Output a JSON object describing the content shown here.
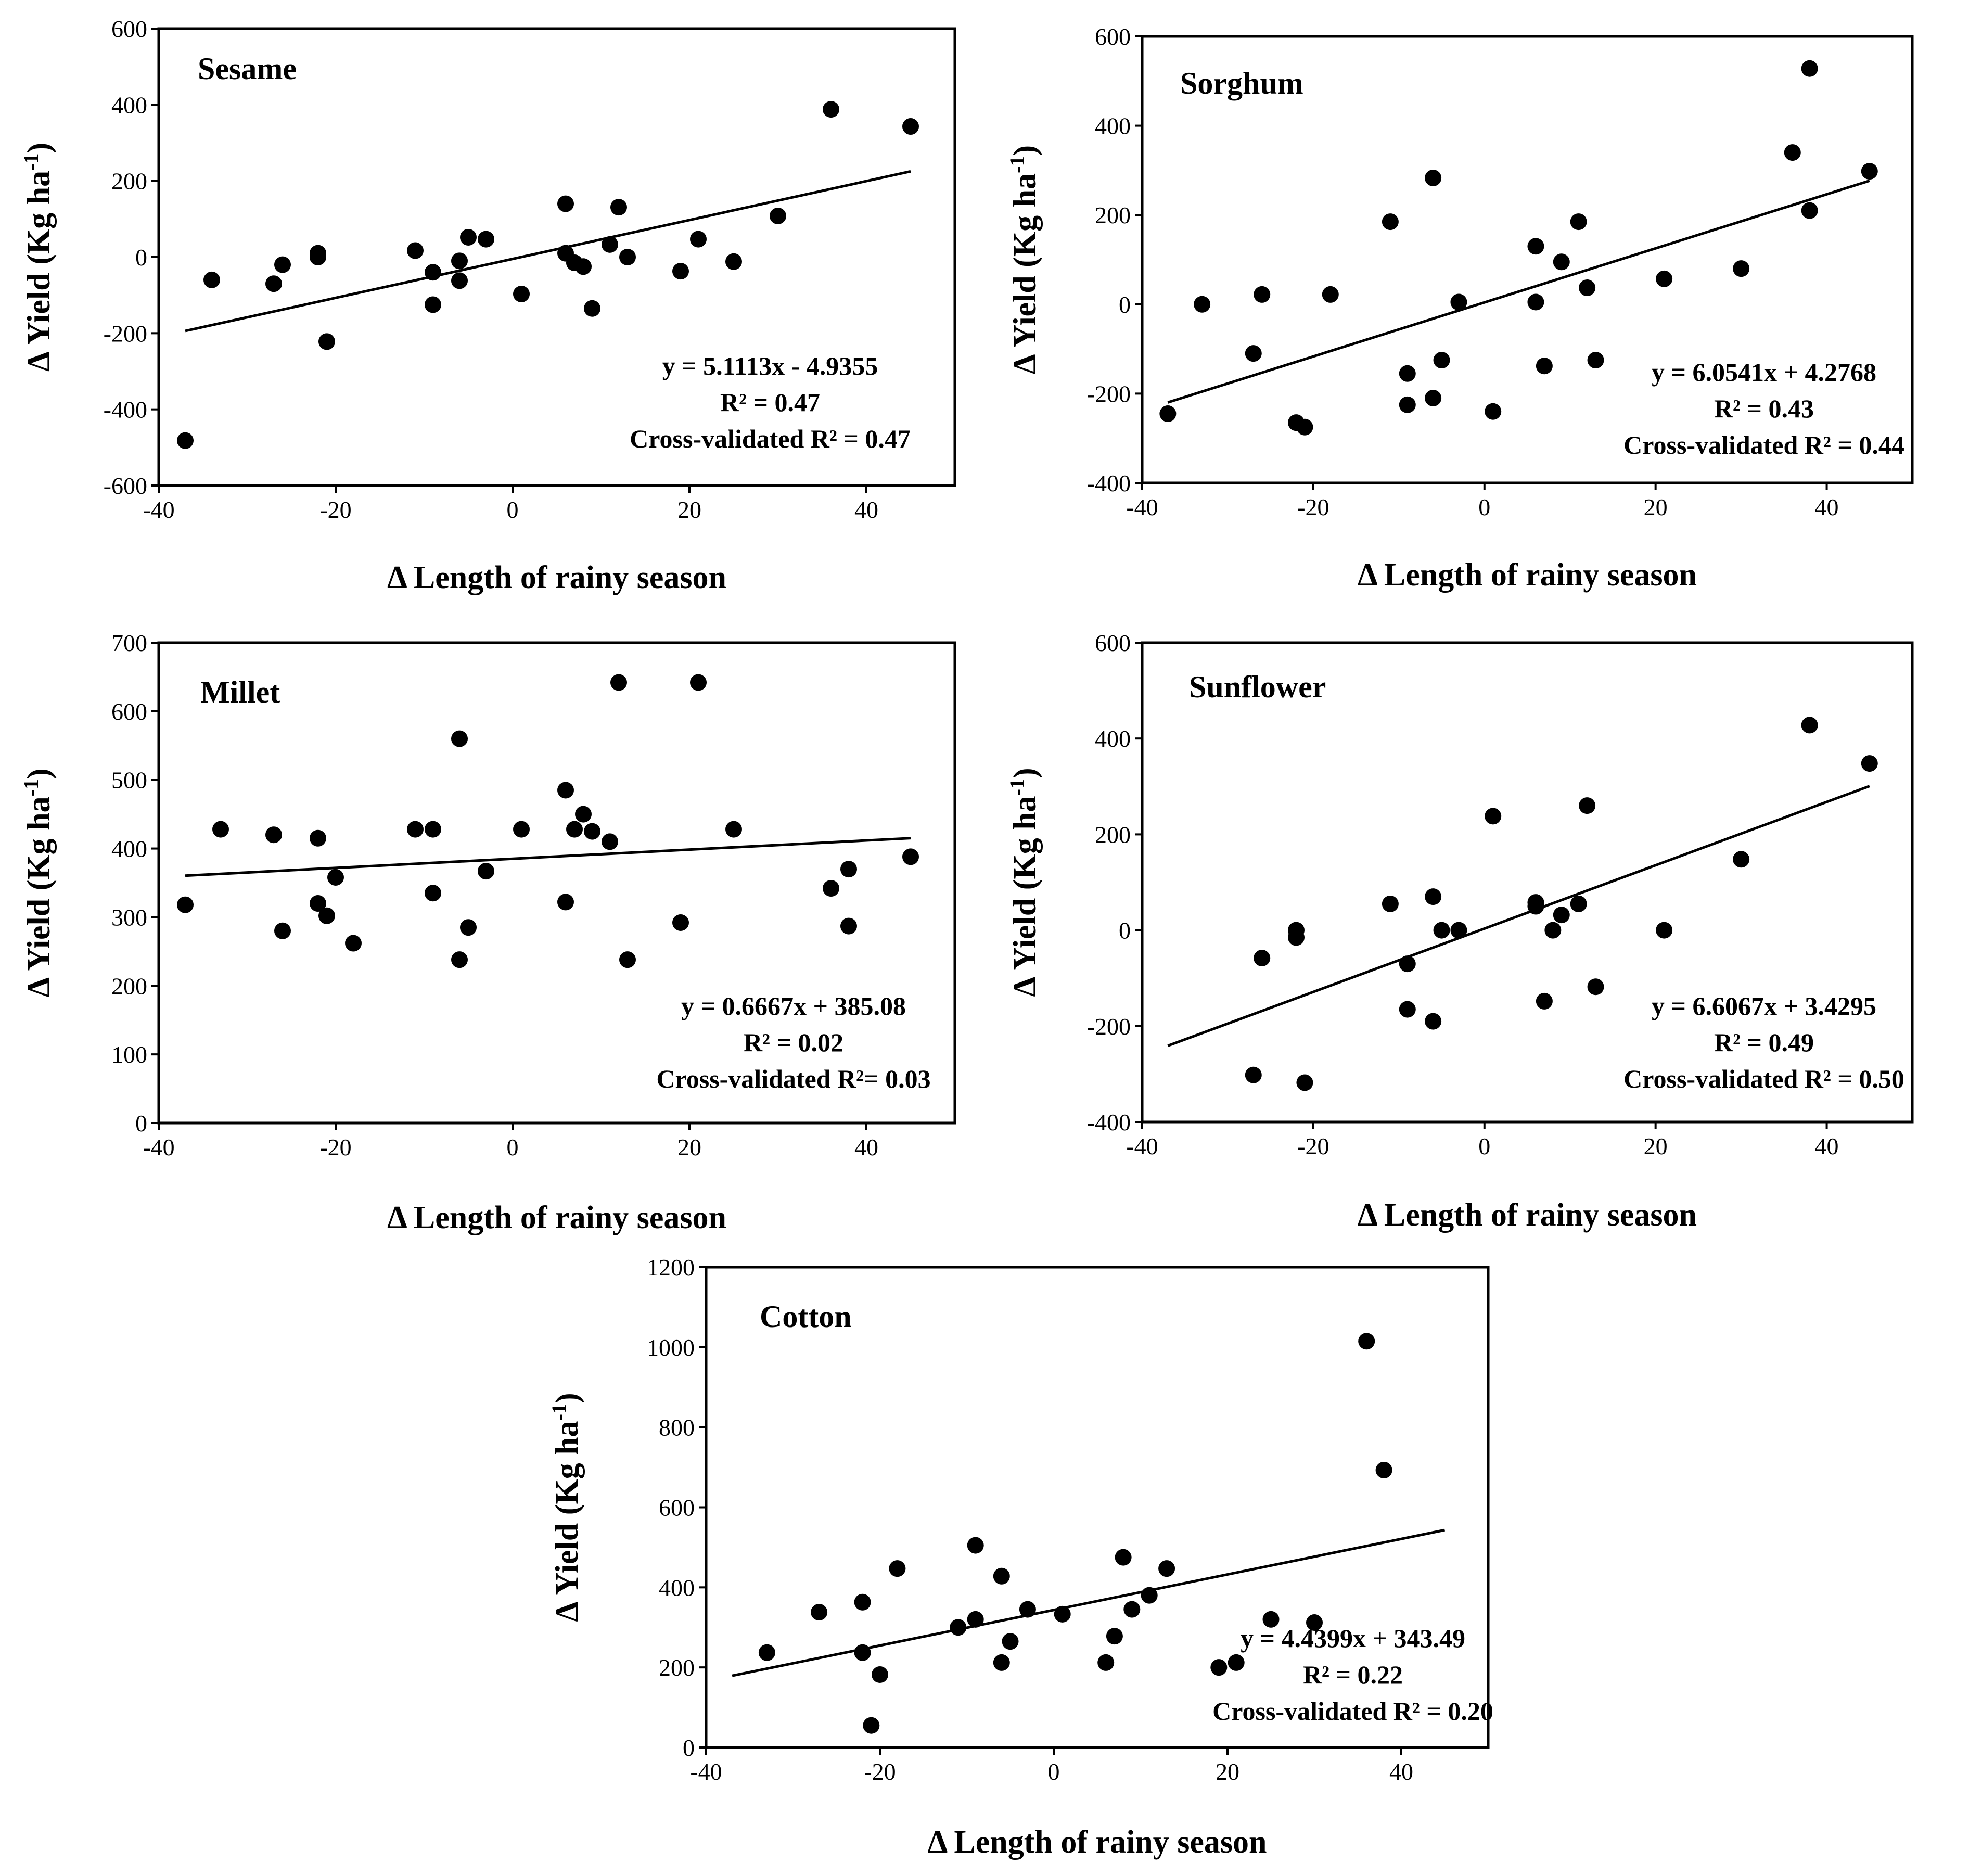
{
  "figure": {
    "xlabel_prefix": "Δ",
    "xlabel": "Length of rainy season",
    "ylabel": "Δ Yield (Kg ha",
    "ylabel_sup": "-1",
    "ylabel_end": ")"
  },
  "chart_data": [
    {
      "type": "scatter",
      "title": "Sesame",
      "xlabel": "Δ Length of rainy season",
      "ylabel": "Δ Yield (Kg ha-1)",
      "xlim": [
        -40,
        50
      ],
      "ylim": [
        -600,
        600
      ],
      "xticks": [
        -40,
        -20,
        0,
        20,
        40
      ],
      "yticks": [
        -600,
        -400,
        -200,
        0,
        200,
        400,
        600
      ],
      "points": [
        [
          -37,
          -482
        ],
        [
          -34,
          -60
        ],
        [
          -27,
          -70
        ],
        [
          -26,
          -20
        ],
        [
          -22,
          10
        ],
        [
          -22,
          0
        ],
        [
          -21,
          -222
        ],
        [
          -11,
          17
        ],
        [
          -9,
          -40
        ],
        [
          -9,
          -125
        ],
        [
          -6,
          -10
        ],
        [
          -6,
          -62
        ],
        [
          -5,
          52
        ],
        [
          -3,
          47
        ],
        [
          1,
          -97
        ],
        [
          6,
          140
        ],
        [
          6,
          10
        ],
        [
          7,
          -15
        ],
        [
          8,
          -25
        ],
        [
          9,
          -135
        ],
        [
          11,
          33
        ],
        [
          12,
          131
        ],
        [
          13,
          0
        ],
        [
          19,
          -37
        ],
        [
          21,
          47
        ],
        [
          25,
          -12
        ],
        [
          30,
          108
        ],
        [
          36,
          388
        ],
        [
          45,
          343
        ]
      ],
      "trendline": {
        "slope": 5.1113,
        "intercept": -4.9355,
        "x_range": [
          -37,
          45
        ]
      },
      "annotations": [
        "y = 5.1113x - 4.9355",
        "R² = 0.47",
        "Cross-validated R² = 0.47"
      ]
    },
    {
      "type": "scatter",
      "title": "Sorghum",
      "xlabel": "Δ Length of rainy season",
      "ylabel": "Δ Yield (Kg ha-1)",
      "xlim": [
        -40,
        50
      ],
      "ylim": [
        -400,
        600
      ],
      "xticks": [
        -40,
        -20,
        0,
        20,
        40
      ],
      "yticks": [
        -400,
        -200,
        0,
        200,
        400,
        600
      ],
      "points": [
        [
          -37,
          -245
        ],
        [
          -33,
          0
        ],
        [
          -27,
          -110
        ],
        [
          -26,
          22
        ],
        [
          -22,
          -265
        ],
        [
          -21,
          -275
        ],
        [
          -18,
          22
        ],
        [
          -11,
          185
        ],
        [
          -9,
          -155
        ],
        [
          -9,
          -225
        ],
        [
          -6,
          283
        ],
        [
          -6,
          -210
        ],
        [
          -5,
          -125
        ],
        [
          -3,
          5
        ],
        [
          1,
          -240
        ],
        [
          6,
          130
        ],
        [
          6,
          5
        ],
        [
          7,
          -138
        ],
        [
          9,
          95
        ],
        [
          11,
          185
        ],
        [
          12,
          37
        ],
        [
          13,
          -125
        ],
        [
          21,
          57
        ],
        [
          30,
          80
        ],
        [
          36,
          340
        ],
        [
          38,
          528
        ],
        [
          38,
          210
        ],
        [
          45,
          298
        ]
      ],
      "trendline": {
        "slope": 6.0541,
        "intercept": 4.2768,
        "x_range": [
          -37,
          45
        ]
      },
      "annotations": [
        "y = 6.0541x + 4.2768",
        "R² = 0.43",
        "Cross-validated R² = 0.44"
      ]
    },
    {
      "type": "scatter",
      "title": "Millet",
      "xlabel": "Δ Length of rainy season",
      "ylabel": "Δ Yield (Kg ha-1)",
      "xlim": [
        -40,
        50
      ],
      "ylim": [
        0,
        700
      ],
      "xticks": [
        -40,
        -20,
        0,
        20,
        40
      ],
      "yticks": [
        0,
        100,
        200,
        300,
        400,
        500,
        600,
        700
      ],
      "points": [
        [
          -37,
          318
        ],
        [
          -33,
          428
        ],
        [
          -27,
          420
        ],
        [
          -26,
          280
        ],
        [
          -22,
          415
        ],
        [
          -22,
          320
        ],
        [
          -21,
          302
        ],
        [
          -20,
          358
        ],
        [
          -18,
          262
        ],
        [
          -11,
          428
        ],
        [
          -9,
          428
        ],
        [
          -9,
          335
        ],
        [
          -6,
          560
        ],
        [
          -6,
          238
        ],
        [
          -5,
          285
        ],
        [
          -3,
          367
        ],
        [
          1,
          428
        ],
        [
          6,
          485
        ],
        [
          6,
          322
        ],
        [
          7,
          428
        ],
        [
          8,
          450
        ],
        [
          9,
          425
        ],
        [
          11,
          410
        ],
        [
          12,
          642
        ],
        [
          13,
          238
        ],
        [
          19,
          292
        ],
        [
          21,
          642
        ],
        [
          25,
          428
        ],
        [
          36,
          342
        ],
        [
          38,
          370
        ],
        [
          38,
          287
        ],
        [
          45,
          388
        ]
      ],
      "trendline": {
        "slope": 0.6667,
        "intercept": 385.08,
        "x_range": [
          -37,
          45
        ]
      },
      "annotations": [
        "y = 0.6667x + 385.08",
        "R² = 0.02",
        "Cross-validated R²= 0.03"
      ]
    },
    {
      "type": "scatter",
      "title": "Sunflower",
      "xlabel": "Δ Length of rainy season",
      "ylabel": "Δ Yield (Kg ha-1)",
      "xlim": [
        -40,
        50
      ],
      "ylim": [
        -400,
        600
      ],
      "xticks": [
        -40,
        -20,
        0,
        20,
        40
      ],
      "yticks": [
        -400,
        -200,
        0,
        200,
        400,
        600
      ],
      "points": [
        [
          -27,
          -302
        ],
        [
          -26,
          -58
        ],
        [
          -22,
          0
        ],
        [
          -22,
          -15
        ],
        [
          -21,
          -318
        ],
        [
          -11,
          55
        ],
        [
          -9,
          -70
        ],
        [
          -9,
          -165
        ],
        [
          -6,
          70
        ],
        [
          -6,
          -190
        ],
        [
          -5,
          0
        ],
        [
          -3,
          0
        ],
        [
          1,
          238
        ],
        [
          6,
          58
        ],
        [
          6,
          50
        ],
        [
          7,
          -148
        ],
        [
          8,
          0
        ],
        [
          9,
          32
        ],
        [
          11,
          55
        ],
        [
          12,
          260
        ],
        [
          13,
          -118
        ],
        [
          21,
          0
        ],
        [
          30,
          148
        ],
        [
          38,
          428
        ],
        [
          45,
          348
        ]
      ],
      "trendline": {
        "slope": 6.6067,
        "intercept": 3.4295,
        "x_range": [
          -37,
          45
        ]
      },
      "annotations": [
        "y = 6.6067x + 3.4295",
        "R² = 0.49",
        "Cross-validated R² = 0.50"
      ]
    },
    {
      "type": "scatter",
      "title": "Cotton",
      "xlabel": "Δ Length of rainy season",
      "ylabel": "Δ Yield (Kg ha-1)",
      "xlim": [
        -40,
        50
      ],
      "ylim": [
        0,
        1200
      ],
      "xticks": [
        -40,
        -20,
        0,
        20,
        40
      ],
      "yticks": [
        0,
        200,
        400,
        600,
        800,
        1000,
        1200
      ],
      "points": [
        [
          -33,
          237
        ],
        [
          -27,
          338
        ],
        [
          -22,
          363
        ],
        [
          -22,
          237
        ],
        [
          -21,
          55
        ],
        [
          -20,
          182
        ],
        [
          -18,
          447
        ],
        [
          -11,
          300
        ],
        [
          -9,
          505
        ],
        [
          -9,
          320
        ],
        [
          -6,
          428
        ],
        [
          -6,
          212
        ],
        [
          -5,
          265
        ],
        [
          -3,
          345
        ],
        [
          1,
          333
        ],
        [
          6,
          212
        ],
        [
          7,
          278
        ],
        [
          8,
          475
        ],
        [
          9,
          345
        ],
        [
          11,
          380
        ],
        [
          13,
          447
        ],
        [
          19,
          200
        ],
        [
          21,
          212
        ],
        [
          25,
          320
        ],
        [
          30,
          312
        ],
        [
          36,
          1015
        ],
        [
          38,
          693
        ]
      ],
      "trendline": {
        "slope": 4.4399,
        "intercept": 343.49,
        "x_range": [
          -37,
          45
        ]
      },
      "annotations": [
        "y = 4.4399x + 343.49",
        "R² = 0.22",
        "Cross-validated R² = 0.20"
      ]
    }
  ]
}
